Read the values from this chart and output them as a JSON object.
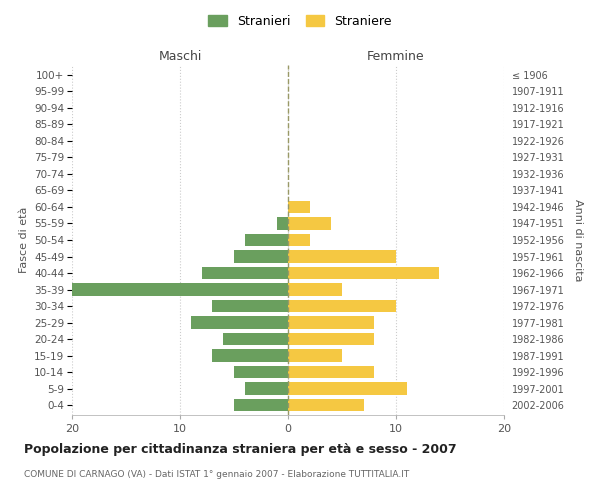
{
  "age_groups": [
    "0-4",
    "5-9",
    "10-14",
    "15-19",
    "20-24",
    "25-29",
    "30-34",
    "35-39",
    "40-44",
    "45-49",
    "50-54",
    "55-59",
    "60-64",
    "65-69",
    "70-74",
    "75-79",
    "80-84",
    "85-89",
    "90-94",
    "95-99",
    "100+"
  ],
  "birth_years": [
    "2002-2006",
    "1997-2001",
    "1992-1996",
    "1987-1991",
    "1982-1986",
    "1977-1981",
    "1972-1976",
    "1967-1971",
    "1962-1966",
    "1957-1961",
    "1952-1956",
    "1947-1951",
    "1942-1946",
    "1937-1941",
    "1932-1936",
    "1927-1931",
    "1922-1926",
    "1917-1921",
    "1912-1916",
    "1907-1911",
    "≤ 1906"
  ],
  "maschi": [
    5,
    4,
    5,
    7,
    6,
    9,
    7,
    20,
    8,
    5,
    4,
    1,
    0,
    0,
    0,
    0,
    0,
    0,
    0,
    0,
    0
  ],
  "femmine": [
    7,
    11,
    8,
    5,
    8,
    8,
    10,
    5,
    14,
    10,
    2,
    4,
    2,
    0,
    0,
    0,
    0,
    0,
    0,
    0,
    0
  ],
  "maschi_color": "#6a9f5e",
  "femmine_color": "#f5c842",
  "background_color": "#ffffff",
  "grid_color": "#cccccc",
  "center_line_color": "#999966",
  "title": "Popolazione per cittadinanza straniera per età e sesso - 2007",
  "subtitle": "COMUNE DI CARNAGO (VA) - Dati ISTAT 1° gennaio 2007 - Elaborazione TUTTITALIA.IT",
  "xlabel_left": "Maschi",
  "xlabel_right": "Femmine",
  "ylabel_left": "Fasce di età",
  "ylabel_right": "Anni di nascita",
  "xlim": 20,
  "legend_stranieri": "Stranieri",
  "legend_straniere": "Straniere"
}
